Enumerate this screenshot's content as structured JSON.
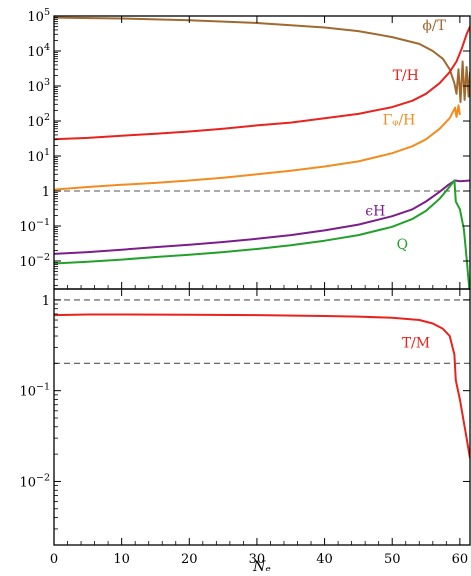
{
  "chart_data": [
    {
      "type": "line",
      "panel": "top",
      "xlabel": "",
      "ylabel": "",
      "xlim": [
        0,
        61.5
      ],
      "ylim_log10": [
        -2.8,
        5.0
      ],
      "yscale": "log",
      "grid": false,
      "y_ticks": [
        {
          "label": "10⁵",
          "value": 100000
        },
        {
          "label": "10⁴",
          "value": 10000
        },
        {
          "label": "10³",
          "value": 1000
        },
        {
          "label": "10²",
          "value": 100
        },
        {
          "label": "10¹",
          "value": 10
        },
        {
          "label": "1",
          "value": 1
        },
        {
          "label": "10⁻¹",
          "value": 0.1
        },
        {
          "label": "10⁻²",
          "value": 0.01
        }
      ],
      "reference_lines": [
        {
          "y": 1,
          "style": "dashed"
        }
      ],
      "series": [
        {
          "name": "ϕ/T",
          "color": "#A0692E",
          "label_at": [
            56.2,
            40000
          ],
          "points": [
            [
              0,
              90000
            ],
            [
              10,
              85000
            ],
            [
              20,
              76000
            ],
            [
              30,
              63000
            ],
            [
              40,
              47000
            ],
            [
              45,
              37000
            ],
            [
              50,
              25000
            ],
            [
              54,
              16000
            ],
            [
              56,
              10000
            ],
            [
              57.5,
              6000
            ],
            [
              58.5,
              3000
            ],
            [
              59.2,
              1200
            ],
            [
              59.5,
              600
            ],
            [
              59.8,
              3000
            ],
            [
              60.1,
              350
            ],
            [
              60.4,
              5000
            ],
            [
              60.7,
              400
            ],
            [
              61,
              3500
            ],
            [
              61.3,
              500
            ],
            [
              61.5,
              2500
            ]
          ]
        },
        {
          "name": "T/H",
          "color": "#E8231E",
          "label_at": [
            52,
            1500
          ],
          "points": [
            [
              0,
              30
            ],
            [
              5,
              33
            ],
            [
              10,
              38
            ],
            [
              15,
              43
            ],
            [
              20,
              50
            ],
            [
              25,
              60
            ],
            [
              30,
              75
            ],
            [
              35,
              90
            ],
            [
              40,
              120
            ],
            [
              45,
              160
            ],
            [
              50,
              250
            ],
            [
              53,
              380
            ],
            [
              55,
              600
            ],
            [
              57,
              1200
            ],
            [
              58.5,
              2500
            ],
            [
              59.5,
              5000
            ],
            [
              60.3,
              12000
            ],
            [
              61,
              30000
            ],
            [
              61.5,
              50000
            ]
          ]
        },
        {
          "name": "Γᵩ/H",
          "color": "#F28C1E",
          "label_at": [
            51,
            80
          ],
          "points": [
            [
              0,
              1.1
            ],
            [
              5,
              1.3
            ],
            [
              10,
              1.5
            ],
            [
              15,
              1.7
            ],
            [
              20,
              2
            ],
            [
              25,
              2.4
            ],
            [
              30,
              3
            ],
            [
              35,
              3.8
            ],
            [
              40,
              5
            ],
            [
              45,
              7
            ],
            [
              50,
              12
            ],
            [
              53,
              19
            ],
            [
              55,
              30
            ],
            [
              57,
              60
            ],
            [
              58.5,
              120
            ],
            [
              59.3,
              240
            ],
            [
              59.5,
              130
            ],
            [
              59.8,
              280
            ],
            [
              60,
              150
            ]
          ]
        },
        {
          "name": "ϵH",
          "color": "#7B1E8C",
          "label_at": [
            47.5,
            0.2
          ],
          "points": [
            [
              0,
              0.016
            ],
            [
              5,
              0.018
            ],
            [
              10,
              0.021
            ],
            [
              15,
              0.025
            ],
            [
              20,
              0.029
            ],
            [
              25,
              0.035
            ],
            [
              30,
              0.043
            ],
            [
              35,
              0.055
            ],
            [
              40,
              0.075
            ],
            [
              45,
              0.11
            ],
            [
              50,
              0.19
            ],
            [
              53,
              0.3
            ],
            [
              55,
              0.5
            ],
            [
              57,
              0.95
            ],
            [
              58.3,
              1.5
            ],
            [
              59.3,
              2
            ],
            [
              60,
              1.9
            ],
            [
              61.5,
              2
            ]
          ]
        },
        {
          "name": "Q",
          "color": "#22A02A",
          "label_at": [
            51.5,
            0.022
          ],
          "points": [
            [
              0,
              0.0085
            ],
            [
              5,
              0.0095
            ],
            [
              10,
              0.011
            ],
            [
              15,
              0.013
            ],
            [
              20,
              0.015
            ],
            [
              25,
              0.018
            ],
            [
              30,
              0.022
            ],
            [
              35,
              0.028
            ],
            [
              40,
              0.038
            ],
            [
              45,
              0.055
            ],
            [
              50,
              0.095
            ],
            [
              53,
              0.16
            ],
            [
              55,
              0.27
            ],
            [
              57,
              0.6
            ],
            [
              58.3,
              1.2
            ],
            [
              59.2,
              2
            ],
            [
              59.4,
              0.5
            ],
            [
              60,
              0.3
            ],
            [
              60.6,
              0.08
            ],
            [
              61,
              0.012
            ],
            [
              61.4,
              0.0016
            ]
          ]
        }
      ]
    },
    {
      "type": "line",
      "panel": "bottom",
      "xlabel": "Nₑ",
      "ylabel": "",
      "xlim": [
        0,
        61.5
      ],
      "ylim_log10": [
        -2.7,
        0.12
      ],
      "yscale": "log",
      "grid": false,
      "x_ticks": [
        0,
        10,
        20,
        30,
        40,
        50,
        60
      ],
      "y_ticks": [
        {
          "label": "1",
          "value": 1
        },
        {
          "label": "10⁻¹",
          "value": 0.1
        },
        {
          "label": "10⁻²",
          "value": 0.01
        }
      ],
      "reference_lines": [
        {
          "y": 1,
          "style": "dashed"
        },
        {
          "y": 0.2,
          "style": "dashed"
        }
      ],
      "series": [
        {
          "name": "T/M",
          "color": "#E8231E",
          "label_at": [
            53.5,
            0.3
          ],
          "points": [
            [
              0,
              0.68
            ],
            [
              5,
              0.69
            ],
            [
              10,
              0.69
            ],
            [
              20,
              0.685
            ],
            [
              30,
              0.68
            ],
            [
              40,
              0.665
            ],
            [
              45,
              0.655
            ],
            [
              50,
              0.635
            ],
            [
              54,
              0.6
            ],
            [
              56,
              0.55
            ],
            [
              57.5,
              0.48
            ],
            [
              58.5,
              0.4
            ],
            [
              59.2,
              0.25
            ],
            [
              59.4,
              0.13
            ],
            [
              60,
              0.08
            ],
            [
              61,
              0.03
            ],
            [
              61.5,
              0.018
            ]
          ]
        }
      ]
    }
  ]
}
